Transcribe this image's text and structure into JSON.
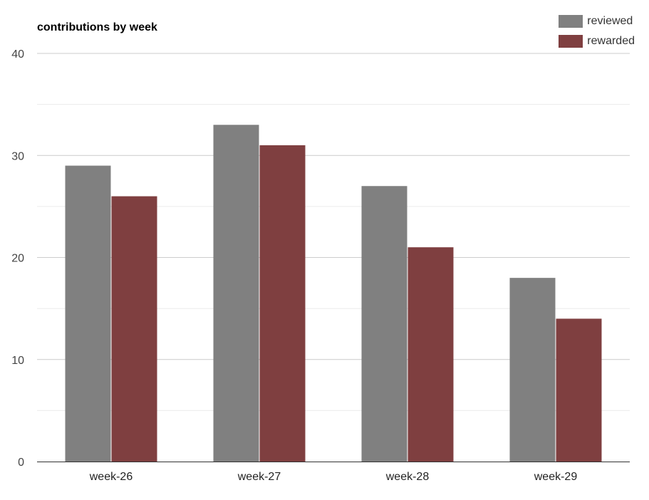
{
  "chart_data": {
    "type": "bar",
    "title": "contributions by week",
    "categories": [
      "week-26",
      "week-27",
      "week-28",
      "week-29"
    ],
    "series": [
      {
        "name": "reviewed",
        "color": "#808080",
        "values": [
          29,
          33,
          27,
          18
        ]
      },
      {
        "name": "rewarded",
        "color": "#7f3f40",
        "values": [
          26,
          31,
          21,
          14
        ]
      }
    ],
    "ylim": [
      0,
      40
    ],
    "yticks": [
      0,
      10,
      20,
      30,
      40
    ],
    "minor_gridlines": true,
    "legend": "top-right",
    "xlabel": "",
    "ylabel": ""
  }
}
